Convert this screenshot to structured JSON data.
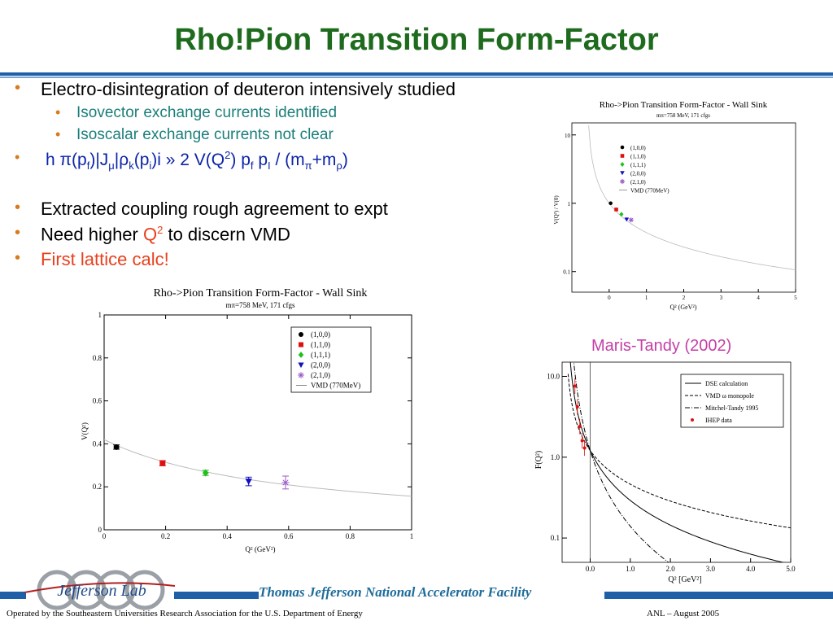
{
  "slide": {
    "title": "Rho!Pion Transition Form-Factor",
    "bullets": {
      "b1": "Electro-disintegration of deuteron intensively studied",
      "b1a": "Isovector exchange currents identified",
      "b1b": "Isoscalar exchange currents not clear",
      "b3": "Extracted coupling rough agreement to expt",
      "b4_pre": "Need higher ",
      "b4_q": "Q",
      "b4_sup": "2",
      "b4_post": " to discern VMD",
      "b5": "First lattice calc!"
    },
    "equation": {
      "h": "h ",
      "pi": "π",
      "p1": "(p",
      "f": "f",
      "j": ")|J",
      "mu": "μ",
      "bar": "|",
      "rho": "ρ",
      "k": "k",
      "pi_open": "(p",
      "i": "i",
      "close": ")i » 2 V(Q",
      "two": "2",
      "mid": ") p",
      "f2": "f",
      "pI": " p",
      "I": "I",
      "slash": " / (m",
      "pi2": "π",
      "plus": "+m",
      "rho2": "ρ",
      "end": ")"
    },
    "footer": {
      "facility": "Thomas Jefferson National Accelerator Facility",
      "operated": "Operated by the Southeastern Universities Research Association for the U.S. Department of  Energy",
      "conference": "ANL – August  2005",
      "logo_text": "Jefferson Lab"
    },
    "colors": {
      "title": "#1e6b1e",
      "bar": "#1f5fa8",
      "bullet": "#d87a1e",
      "sub": "#1a7f7a",
      "highlight": "#e8401c",
      "equation": "#0b24a8",
      "maris": "#c43fa6"
    }
  },
  "chart_data": [
    {
      "type": "scatter",
      "title": "Rho->Pion Transition Form-Factor - Wall Sink",
      "subtitle": "mπ=758 MeV,  171 cfgs",
      "xlabel": "Q² (GeV²)",
      "ylabel": "V(Q²)",
      "xlim": [
        0,
        1
      ],
      "ylim": [
        0,
        1
      ],
      "xticks": [
        "0",
        "0.2",
        "0.4",
        "0.6",
        "0.8",
        "1"
      ],
      "yticks": [
        "0",
        "0.2",
        "0.4",
        "0.6",
        "0.8",
        "1"
      ],
      "legend_position": "top-right",
      "series": [
        {
          "name": "(1,0,0)",
          "color": "#000000",
          "marker": "circle",
          "x": [
            0.04
          ],
          "y": [
            0.385
          ],
          "err": [
            0.01
          ]
        },
        {
          "name": "(1,1,0)",
          "color": "#e01010",
          "marker": "square",
          "x": [
            0.19
          ],
          "y": [
            0.31
          ],
          "err": [
            0.012
          ]
        },
        {
          "name": "(1,1,1)",
          "color": "#20c020",
          "marker": "diamond",
          "x": [
            0.33
          ],
          "y": [
            0.265
          ],
          "err": [
            0.012
          ]
        },
        {
          "name": "(2,0,0)",
          "color": "#1010c0",
          "marker": "triangle-down",
          "x": [
            0.47
          ],
          "y": [
            0.225
          ],
          "err": [
            0.02
          ]
        },
        {
          "name": "(2,1,0)",
          "color": "#9a5ac8",
          "marker": "star",
          "x": [
            0.59
          ],
          "y": [
            0.22
          ],
          "err": [
            0.03
          ]
        }
      ],
      "curve": {
        "name": "VMD (770MeV)",
        "color": "#bbbbbb"
      }
    },
    {
      "type": "scatter",
      "title": "Rho->Pion Transition Form-Factor - Wall Sink",
      "subtitle": "mπ=758 MeV,  171 cfgs",
      "xlabel": "Q² (GeV²)",
      "ylabel": "V(Q²) / V(0)",
      "xlim": [
        -1,
        5
      ],
      "ylim": [
        0.05,
        15
      ],
      "yscale": "log",
      "xticks": [
        "0",
        "1",
        "2",
        "3",
        "4",
        "5"
      ],
      "yticks": [
        "0.1",
        "1",
        "10"
      ],
      "legend_position": "top-left",
      "series": [
        {
          "name": "(1,0,0)",
          "color": "#000000",
          "marker": "circle",
          "x": [
            0.04
          ],
          "y": [
            1.0
          ]
        },
        {
          "name": "(1,1,0)",
          "color": "#e01010",
          "marker": "square",
          "x": [
            0.19
          ],
          "y": [
            0.81
          ]
        },
        {
          "name": "(1,1,1)",
          "color": "#20c020",
          "marker": "diamond",
          "x": [
            0.33
          ],
          "y": [
            0.69
          ]
        },
        {
          "name": "(2,0,0)",
          "color": "#1010c0",
          "marker": "triangle-down",
          "x": [
            0.47
          ],
          "y": [
            0.58
          ]
        },
        {
          "name": "(2,1,0)",
          "color": "#9a5ac8",
          "marker": "star",
          "x": [
            0.59
          ],
          "y": [
            0.57
          ]
        }
      ],
      "curve": {
        "name": "VMD (770MeV)",
        "color": "#bbbbbb"
      }
    },
    {
      "type": "line",
      "title": "Maris-Tandy (2002)",
      "xlabel": "Q² [GeV²]",
      "ylabel": "F(Q²)",
      "xlim": [
        -0.7,
        5
      ],
      "ylim": [
        0.05,
        15
      ],
      "yscale": "log",
      "xticks": [
        "0.0",
        "1.0",
        "2.0",
        "3.0",
        "4.0",
        "5.0"
      ],
      "yticks": [
        "0.1",
        "1.0",
        "10.0"
      ],
      "legend_position": "top-right",
      "series": [
        {
          "name": "DSE calculation",
          "style": "solid"
        },
        {
          "name": "VMD  ω  monopole",
          "style": "dashed"
        },
        {
          "name": "Mitchel-Tandy 1995",
          "style": "dashdot"
        },
        {
          "name": "IHEP data",
          "style": "points",
          "color": "#e01010",
          "x": [
            -0.38,
            -0.32,
            -0.26,
            -0.2,
            -0.14
          ],
          "y": [
            7.6,
            4.2,
            2.4,
            1.6,
            1.3
          ]
        }
      ]
    }
  ]
}
